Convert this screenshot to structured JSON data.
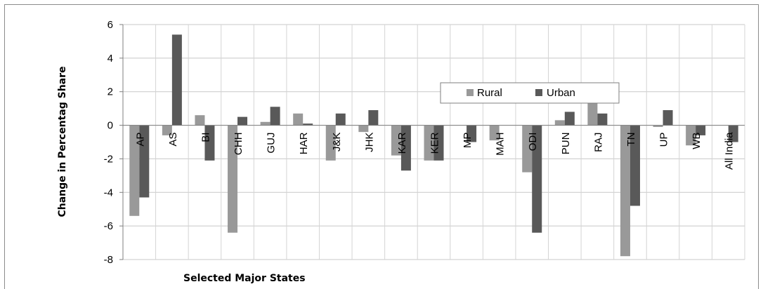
{
  "chart_data": {
    "type": "bar",
    "xlabel": "Selected Major States",
    "ylabel": "Change in Percentag Share",
    "ylim": [
      -8,
      6
    ],
    "yticks": [
      6,
      4,
      2,
      0,
      -2,
      -4,
      -6,
      -8
    ],
    "grid": true,
    "legend": "top-right",
    "categories": [
      "AP",
      "AS",
      "BI",
      "CHH",
      "GUJ",
      "HAR",
      "J&K",
      "JHK",
      "KAR",
      "KER",
      "MP",
      "MAH",
      "ODI",
      "PUN",
      "RAJ",
      "TN",
      "UP",
      "WB",
      "All India"
    ],
    "series": [
      {
        "name": "Rural",
        "color": "#999999",
        "values": [
          -5.4,
          -0.6,
          0.6,
          -6.4,
          0.2,
          0.7,
          -2.1,
          -0.4,
          -1.8,
          -2.1,
          0.0,
          -0.9,
          -2.8,
          0.3,
          1.6,
          -7.8,
          -0.1,
          -1.2,
          0.0
        ]
      },
      {
        "name": "Urban",
        "color": "#595959",
        "values": [
          -4.3,
          5.4,
          -2.1,
          0.5,
          1.1,
          0.1,
          0.7,
          0.9,
          -2.7,
          -2.1,
          -1.0,
          0.0,
          -6.4,
          0.8,
          0.7,
          -4.8,
          0.9,
          -0.6,
          -1.0
        ]
      }
    ]
  }
}
